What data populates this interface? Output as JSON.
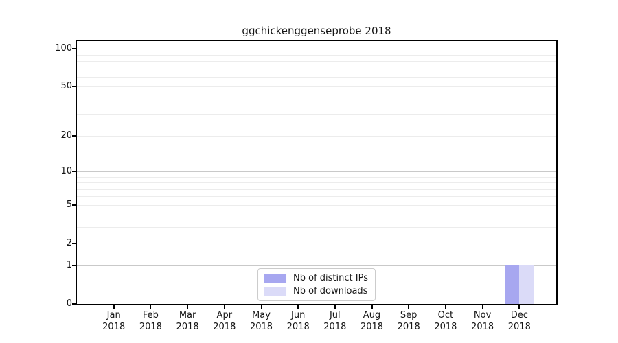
{
  "figure": {
    "title": "ggchickenggenseprobe 2018"
  },
  "chart_data": {
    "type": "bar",
    "title": "ggchickenggenseprobe 2018",
    "categories": [
      "Jan",
      "Feb",
      "Mar",
      "Apr",
      "May",
      "Jun",
      "Jul",
      "Aug",
      "Sep",
      "Oct",
      "Nov",
      "Dec"
    ],
    "x_tick_year": "2018",
    "series": [
      {
        "name": "Nb of distinct IPs",
        "color": "#a7a7f0",
        "values": [
          0,
          0,
          0,
          0,
          0,
          0,
          0,
          0,
          0,
          0,
          0,
          1
        ]
      },
      {
        "name": "Nb of downloads",
        "color": "#dbdbf8",
        "values": [
          0,
          0,
          0,
          0,
          0,
          0,
          0,
          0,
          0,
          0,
          0,
          1
        ]
      }
    ],
    "yscale": "log1p",
    "ylim": [
      0,
      115
    ],
    "ytick_labels": [
      0,
      1,
      2,
      5,
      10,
      20,
      50,
      100
    ],
    "grid": {
      "major_values": [
        1,
        10,
        100
      ],
      "minor_values": [
        2,
        3,
        4,
        5,
        6,
        7,
        8,
        9,
        20,
        30,
        40,
        50,
        60,
        70,
        80,
        90
      ],
      "major_color": "#c9c9c9",
      "minor_color": "#ececec"
    },
    "legend": {
      "entries": [
        "Nb of distinct IPs",
        "Nb of downloads"
      ],
      "position": "lower center"
    },
    "xlabel": "",
    "ylabel": ""
  }
}
